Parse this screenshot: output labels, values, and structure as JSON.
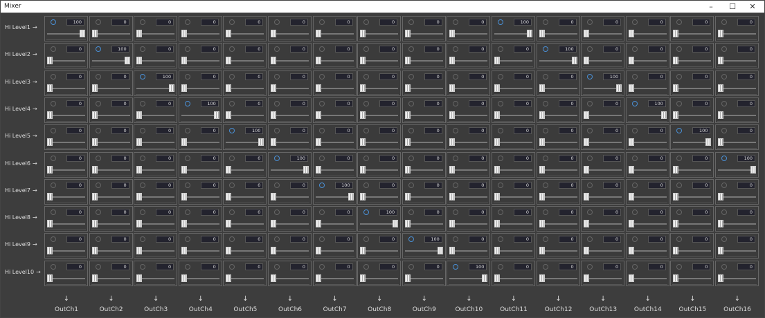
{
  "window": {
    "title": "Mixer",
    "minimize_icon": "minimize-icon",
    "maximize_icon": "maximize-icon",
    "close_icon": "close-icon"
  },
  "colors": {
    "selected": "#4a8fd4",
    "background": "#3d3d3d"
  },
  "rows": [
    "Hi Level1",
    "Hi Level2",
    "Hi Level3",
    "Hi Level4",
    "Hi Level5",
    "Hi Level6",
    "Hi Level7",
    "Hi Level8",
    "Hi Level9",
    "Hi Level10"
  ],
  "columns": [
    "OutCh1",
    "OutCh2",
    "OutCh3",
    "OutCh4",
    "OutCh5",
    "OutCh6",
    "OutCh7",
    "OutCh8",
    "OutCh9",
    "OutCh10",
    "OutCh11",
    "OutCh12",
    "OutCh13",
    "OutCh14",
    "OutCh15",
    "OutCh16"
  ],
  "values": [
    [
      100,
      0,
      0,
      0,
      0,
      0,
      0,
      0,
      0,
      0,
      100,
      0,
      0,
      0,
      0,
      0
    ],
    [
      0,
      100,
      0,
      0,
      0,
      0,
      0,
      0,
      0,
      0,
      0,
      100,
      0,
      0,
      0,
      0
    ],
    [
      0,
      0,
      100,
      0,
      0,
      0,
      0,
      0,
      0,
      0,
      0,
      0,
      100,
      0,
      0,
      0
    ],
    [
      0,
      0,
      0,
      100,
      0,
      0,
      0,
      0,
      0,
      0,
      0,
      0,
      0,
      100,
      0,
      0
    ],
    [
      0,
      0,
      0,
      0,
      100,
      0,
      0,
      0,
      0,
      0,
      0,
      0,
      0,
      0,
      100,
      0
    ],
    [
      0,
      0,
      0,
      0,
      0,
      100,
      0,
      0,
      0,
      0,
      0,
      0,
      0,
      0,
      0,
      100
    ],
    [
      0,
      0,
      0,
      0,
      0,
      0,
      100,
      0,
      0,
      0,
      0,
      0,
      0,
      0,
      0,
      0
    ],
    [
      0,
      0,
      0,
      0,
      0,
      0,
      0,
      100,
      0,
      0,
      0,
      0,
      0,
      0,
      0,
      0
    ],
    [
      0,
      0,
      0,
      0,
      0,
      0,
      0,
      0,
      100,
      0,
      0,
      0,
      0,
      0,
      0,
      0
    ],
    [
      0,
      0,
      0,
      0,
      0,
      0,
      0,
      0,
      0,
      100,
      0,
      0,
      0,
      0,
      0,
      0
    ]
  ]
}
